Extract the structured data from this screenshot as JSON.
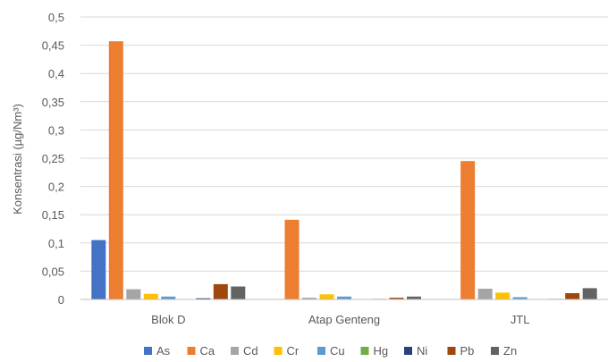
{
  "chart_data": {
    "type": "bar",
    "title": "",
    "xlabel": "",
    "ylabel": "Konsentrasi (µg/Nm³)",
    "ylim": [
      0,
      0.5
    ],
    "yticks": [
      "0",
      "0,05",
      "0,1",
      "0,15",
      "0,2",
      "0,25",
      "0,3",
      "0,35",
      "0,4",
      "0,45",
      "0,5"
    ],
    "grid": true,
    "legend_position": "bottom",
    "categories": [
      "Blok D",
      "Atap Genteng",
      "JTL"
    ],
    "series": [
      {
        "name": "As",
        "color": "#4472C4",
        "values": [
          0.105,
          0.0,
          0.0
        ]
      },
      {
        "name": "Ca",
        "color": "#ED7D31",
        "values": [
          0.457,
          0.141,
          0.245
        ]
      },
      {
        "name": "Cd",
        "color": "#A5A5A5",
        "values": [
          0.018,
          0.003,
          0.019
        ]
      },
      {
        "name": "Cr",
        "color": "#FFC000",
        "values": [
          0.01,
          0.009,
          0.012
        ]
      },
      {
        "name": "Cu",
        "color": "#5B9BD5",
        "values": [
          0.005,
          0.005,
          0.004
        ]
      },
      {
        "name": "Hg",
        "color": "#70AD47",
        "values": [
          0.0,
          0.0,
          0.0
        ]
      },
      {
        "name": "Ni",
        "color": "#264478",
        "values": [
          0.002,
          0.001,
          0.001
        ]
      },
      {
        "name": "Pb",
        "color": "#9E480E",
        "values": [
          0.027,
          0.003,
          0.011
        ]
      },
      {
        "name": "Zn",
        "color": "#636363",
        "values": [
          0.023,
          0.005,
          0.02
        ]
      }
    ]
  }
}
